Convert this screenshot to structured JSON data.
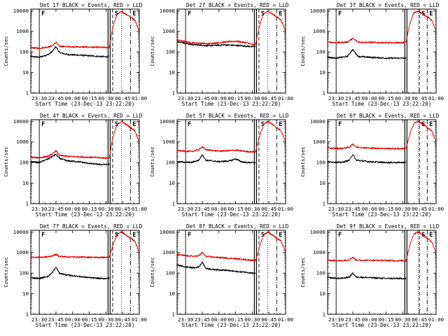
{
  "figure": {
    "x_tick_labels": [
      "23:30",
      "23:45",
      "00:00",
      "00:15",
      "00:30",
      "00:45",
      "01:00"
    ],
    "y_tick_labels": [
      "1",
      "10",
      "100",
      "1000",
      "10000"
    ],
    "x_axis_label": "Start Time (23-Dec-13 23:22:20)",
    "y_axis_label": "Counts/sec",
    "colors": {
      "events": "#000000",
      "lld": "#e00000",
      "background": "#ffffff"
    }
  },
  "chart_data": [
    {
      "type": "line",
      "title": "Det 1f BLACK = Events, RED = LLD",
      "xlabel": "Start Time (23-Dec-13 23:22:20)",
      "ylabel": "Counts/sec",
      "ylog": true,
      "ylim": [
        1,
        12000
      ],
      "xlim": [
        "23:22:20",
        "01:00:00"
      ],
      "x_ticks": [
        "23:30",
        "23:45",
        "00:00",
        "00:15",
        "00:30",
        "00:45",
        "01:00"
      ],
      "series": [
        {
          "name": "Events",
          "color": "#000000",
          "x": [
            "23:22",
            "23:30",
            "23:38",
            "23:42",
            "23:45",
            "23:48",
            "23:55",
            "00:05",
            "00:15",
            "00:25",
            "00:30",
            "00:33"
          ],
          "y": [
            60,
            55,
            75,
            110,
            180,
            95,
            75,
            70,
            65,
            60,
            58,
            60
          ]
        },
        {
          "name": "LLD",
          "color": "#e00000",
          "x": [
            "23:22",
            "23:30",
            "23:38",
            "23:42",
            "23:45",
            "23:48",
            "23:55",
            "00:05",
            "00:15",
            "00:25",
            "00:30",
            "00:33",
            "00:36",
            "00:40",
            "00:44",
            "00:50",
            "00:56",
            "01:00"
          ],
          "y": [
            160,
            150,
            175,
            200,
            300,
            190,
            180,
            175,
            170,
            165,
            165,
            170,
            1500,
            7000,
            9000,
            6000,
            3500,
            1000
          ]
        }
      ],
      "markers": [
        {
          "label": "F",
          "time": "23:30"
        },
        {
          "label": "S",
          "time": "00:36"
        },
        {
          "label": "E",
          "time": "00:52"
        }
      ]
    },
    {
      "type": "line",
      "title": "Det 2f BLACK = Events, RED = LLD",
      "xlabel": "Start Time (23-Dec-13 23:22:20)",
      "ylabel": "Counts/sec",
      "ylog": true,
      "ylim": [
        1,
        12000
      ],
      "xlim": [
        "23:22:20",
        "01:00:00"
      ],
      "x_ticks": [
        "23:30",
        "23:45",
        "00:00",
        "00:15",
        "00:30",
        "00:45",
        "01:00"
      ],
      "series": [
        {
          "name": "Events",
          "color": "#000000",
          "x": [
            "23:22",
            "23:35",
            "23:50",
            "00:05",
            "00:20",
            "00:30",
            "00:33"
          ],
          "y": [
            330,
            230,
            200,
            220,
            200,
            180,
            190
          ]
        },
        {
          "name": "LLD",
          "color": "#e00000",
          "x": [
            "23:22",
            "23:35",
            "23:50",
            "00:05",
            "00:15",
            "00:25",
            "00:30",
            "00:33",
            "00:36",
            "00:40",
            "00:44",
            "00:50",
            "00:56",
            "01:00"
          ],
          "y": [
            380,
            280,
            250,
            300,
            330,
            280,
            230,
            240,
            1500,
            7000,
            9500,
            6000,
            3500,
            1000
          ]
        }
      ],
      "markers": [
        {
          "label": "F",
          "time": "23:30"
        },
        {
          "label": "S",
          "time": "00:36"
        },
        {
          "label": "E",
          "time": "00:52"
        }
      ]
    },
    {
      "type": "line",
      "title": "Det 3f BLACK = Events, RED = LLD",
      "xlabel": "Start Time (23-Dec-13 23:22:20)",
      "ylabel": "Counts/sec",
      "ylog": true,
      "ylim": [
        1,
        12000
      ],
      "xlim": [
        "23:22:20",
        "01:00:00"
      ],
      "x_ticks": [
        "23:30",
        "23:45",
        "00:00",
        "00:15",
        "00:30",
        "00:45",
        "01:00"
      ],
      "series": [
        {
          "name": "Events",
          "color": "#000000",
          "x": [
            "23:22",
            "23:30",
            "23:40",
            "23:45",
            "23:50",
            "00:00",
            "00:15",
            "00:25",
            "00:33"
          ],
          "y": [
            55,
            50,
            60,
            130,
            60,
            55,
            50,
            50,
            50
          ]
        },
        {
          "name": "LLD",
          "color": "#e00000",
          "x": [
            "23:22",
            "23:30",
            "23:40",
            "23:45",
            "23:50",
            "00:00",
            "00:15",
            "00:25",
            "00:33",
            "00:36",
            "00:40",
            "00:44",
            "00:50",
            "00:56",
            "01:00"
          ],
          "y": [
            300,
            280,
            300,
            450,
            300,
            290,
            280,
            280,
            290,
            2000,
            8000,
            9500,
            6000,
            3500,
            1000
          ]
        }
      ],
      "markers": [
        {
          "label": "F",
          "time": "23:30"
        },
        {
          "label": "S",
          "time": "00:45"
        },
        {
          "label": "E",
          "time": "00:52"
        }
      ]
    },
    {
      "type": "line",
      "title": "Det 4f BLACK = Events, RED = LLD",
      "xlabel": "Start Time (23-Dec-13 23:22:20)",
      "ylabel": "Counts/sec",
      "ylog": true,
      "ylim": [
        1,
        12000
      ],
      "xlim": [
        "23:22:20",
        "01:00:00"
      ],
      "x_ticks": [
        "23:30",
        "23:45",
        "00:00",
        "00:15",
        "00:30",
        "00:45",
        "01:00"
      ],
      "series": [
        {
          "name": "Events",
          "color": "#000000",
          "x": [
            "23:22",
            "23:30",
            "23:38",
            "23:42",
            "23:45",
            "23:48",
            "23:55",
            "00:05",
            "00:15",
            "00:25",
            "00:30",
            "00:33"
          ],
          "y": [
            110,
            100,
            150,
            200,
            250,
            160,
            120,
            110,
            90,
            80,
            80,
            85
          ]
        },
        {
          "name": "LLD",
          "color": "#e00000",
          "x": [
            "23:22",
            "23:30",
            "23:38",
            "23:42",
            "23:45",
            "23:48",
            "23:55",
            "00:05",
            "00:15",
            "00:25",
            "00:30",
            "00:33",
            "00:36",
            "00:40",
            "00:44",
            "00:50",
            "00:56",
            "01:00"
          ],
          "y": [
            180,
            170,
            200,
            260,
            380,
            220,
            200,
            190,
            180,
            170,
            165,
            170,
            1500,
            7000,
            10000,
            6000,
            3500,
            1000
          ]
        }
      ],
      "markers": [
        {
          "label": "F",
          "time": "23:30"
        },
        {
          "label": "S",
          "time": "00:36"
        },
        {
          "label": "E",
          "time": "00:52"
        }
      ]
    },
    {
      "type": "line",
      "title": "Det 5f BLACK = Events, RED = LLD",
      "xlabel": "Start Time (23-Dec-13 23:22:20)",
      "ylabel": "Counts/sec",
      "ylog": true,
      "ylim": [
        1,
        12000
      ],
      "xlim": [
        "23:22:20",
        "01:00:00"
      ],
      "x_ticks": [
        "23:30",
        "23:45",
        "00:00",
        "00:15",
        "00:30",
        "00:45",
        "01:00"
      ],
      "series": [
        {
          "name": "Events",
          "color": "#000000",
          "x": [
            "23:22",
            "23:35",
            "23:42",
            "23:45",
            "23:48",
            "00:00",
            "00:10",
            "00:15",
            "00:20",
            "00:25",
            "00:30",
            "00:33"
          ],
          "y": [
            110,
            100,
            130,
            250,
            130,
            110,
            120,
            150,
            110,
            100,
            100,
            95
          ]
        },
        {
          "name": "LLD",
          "color": "#e00000",
          "x": [
            "23:22",
            "23:35",
            "23:42",
            "23:45",
            "23:48",
            "00:00",
            "00:10",
            "00:15",
            "00:20",
            "00:25",
            "00:30",
            "00:33",
            "00:36",
            "00:40",
            "00:44",
            "00:50",
            "00:56",
            "01:00"
          ],
          "y": [
            380,
            340,
            420,
            600,
            420,
            360,
            380,
            400,
            370,
            340,
            330,
            340,
            1500,
            7000,
            10000,
            6000,
            3500,
            1000
          ]
        }
      ],
      "markers": [
        {
          "label": "F",
          "time": "23:30"
        },
        {
          "label": "S",
          "time": "00:36"
        },
        {
          "label": "E",
          "time": "00:52"
        }
      ]
    },
    {
      "type": "line",
      "title": "Det 6f BLACK = Events, RED = LLD",
      "xlabel": "Start Time (23-Dec-13 23:22:20)",
      "ylabel": "Counts/sec",
      "ylog": true,
      "ylim": [
        1,
        12000
      ],
      "xlim": [
        "23:22:20",
        "01:00:00"
      ],
      "x_ticks": [
        "23:30",
        "23:45",
        "00:00",
        "00:15",
        "00:30",
        "00:45",
        "01:00"
      ],
      "series": [
        {
          "name": "Events",
          "color": "#000000",
          "x": [
            "23:22",
            "23:35",
            "23:42",
            "23:45",
            "23:48",
            "00:00",
            "00:15",
            "00:25",
            "00:33"
          ],
          "y": [
            110,
            100,
            130,
            250,
            130,
            110,
            100,
            100,
            100
          ]
        },
        {
          "name": "LLD",
          "color": "#e00000",
          "x": [
            "23:22",
            "23:35",
            "23:42",
            "23:45",
            "23:48",
            "00:00",
            "00:15",
            "00:25",
            "00:33",
            "00:36",
            "00:40",
            "00:44",
            "00:50",
            "00:56",
            "01:00"
          ],
          "y": [
            500,
            480,
            550,
            800,
            560,
            500,
            480,
            470,
            480,
            2000,
            8000,
            10000,
            6000,
            3500,
            1000
          ]
        }
      ],
      "markers": [
        {
          "label": "F",
          "time": "23:30"
        },
        {
          "label": "S",
          "time": "00:45"
        },
        {
          "label": "E",
          "time": "00:52"
        }
      ]
    },
    {
      "type": "line",
      "title": "Det 7f BLACK = Events, RED = LLD",
      "xlabel": "Start Time (23-Dec-13 23:22:20)",
      "ylabel": "Counts/sec",
      "ylog": true,
      "ylim": [
        1,
        12000
      ],
      "xlim": [
        "23:22:20",
        "01:00:00"
      ],
      "x_ticks": [
        "23:30",
        "23:45",
        "00:00",
        "00:15",
        "00:30",
        "00:45",
        "01:00"
      ],
      "series": [
        {
          "name": "Events",
          "color": "#000000",
          "x": [
            "23:22",
            "23:30",
            "23:38",
            "23:42",
            "23:45",
            "23:48",
            "23:55",
            "00:05",
            "00:15",
            "00:25",
            "00:30",
            "00:33"
          ],
          "y": [
            60,
            55,
            70,
            110,
            200,
            100,
            80,
            70,
            60,
            55,
            55,
            55
          ]
        },
        {
          "name": "LLD",
          "color": "#e00000",
          "x": [
            "23:22",
            "23:30",
            "23:38",
            "23:42",
            "23:45",
            "23:48",
            "23:55",
            "00:05",
            "00:15",
            "00:25",
            "00:30",
            "00:33",
            "00:36",
            "00:40",
            "00:44",
            "00:50",
            "00:56",
            "01:00"
          ],
          "y": [
            600,
            580,
            620,
            700,
            800,
            650,
            620,
            600,
            590,
            580,
            580,
            600,
            2000,
            8000,
            10000,
            6000,
            3500,
            1000
          ]
        }
      ],
      "markers": [
        {
          "label": "F",
          "time": "23:30"
        },
        {
          "label": "S",
          "time": "00:36"
        },
        {
          "label": "E",
          "time": "00:52"
        }
      ]
    },
    {
      "type": "line",
      "title": "Det 8f BLACK = Events, RED = LLD",
      "xlabel": "Start Time (23-Dec-13 23:22:20)",
      "ylabel": "Counts/sec",
      "ylog": true,
      "ylim": [
        1,
        12000
      ],
      "xlim": [
        "23:22:20",
        "01:00:00"
      ],
      "x_ticks": [
        "23:30",
        "23:45",
        "00:00",
        "00:15",
        "00:30",
        "00:45",
        "01:00"
      ],
      "series": [
        {
          "name": "Events",
          "color": "#000000",
          "x": [
            "23:22",
            "23:30",
            "23:38",
            "23:42",
            "23:45",
            "23:48",
            "23:55",
            "00:05",
            "00:15",
            "00:25",
            "00:30",
            "00:33"
          ],
          "y": [
            250,
            200,
            180,
            200,
            350,
            170,
            150,
            140,
            120,
            110,
            100,
            95
          ]
        },
        {
          "name": "LLD",
          "color": "#e00000",
          "x": [
            "23:22",
            "23:30",
            "23:38",
            "23:42",
            "23:45",
            "23:48",
            "23:55",
            "00:05",
            "00:15",
            "00:25",
            "00:30",
            "00:33",
            "00:36",
            "00:40",
            "00:44",
            "00:50",
            "00:56",
            "01:00"
          ],
          "y": [
            800,
            700,
            650,
            700,
            1000,
            650,
            600,
            550,
            500,
            450,
            420,
            400,
            1500,
            7000,
            10000,
            6000,
            3500,
            1000
          ]
        }
      ],
      "markers": [
        {
          "label": "F",
          "time": "23:30"
        },
        {
          "label": "S",
          "time": "00:36"
        },
        {
          "label": "E",
          "time": "00:52"
        }
      ]
    },
    {
      "type": "line",
      "title": "Det 9f BLACK = Events, RED = LLD",
      "xlabel": "Start Time (23-Dec-13 23:22:20)",
      "ylabel": "Counts/sec",
      "ylog": true,
      "ylim": [
        1,
        12000
      ],
      "xlim": [
        "23:22:20",
        "01:00:00"
      ],
      "x_ticks": [
        "23:30",
        "23:45",
        "00:00",
        "00:15",
        "00:30",
        "00:45",
        "01:00"
      ],
      "series": [
        {
          "name": "Events",
          "color": "#000000",
          "x": [
            "23:22",
            "23:35",
            "23:42",
            "23:45",
            "23:48",
            "00:00",
            "00:15",
            "00:25",
            "00:33"
          ],
          "y": [
            60,
            55,
            65,
            100,
            65,
            60,
            55,
            55,
            55
          ]
        },
        {
          "name": "LLD",
          "color": "#e00000",
          "x": [
            "23:22",
            "23:35",
            "23:42",
            "23:45",
            "23:48",
            "00:00",
            "00:15",
            "00:25",
            "00:33",
            "00:36",
            "00:40",
            "00:44",
            "00:50",
            "00:56",
            "01:00"
          ],
          "y": [
            420,
            400,
            450,
            600,
            430,
            420,
            410,
            400,
            400,
            2000,
            8000,
            10000,
            6000,
            3500,
            1000
          ]
        }
      ],
      "markers": [
        {
          "label": "F",
          "time": "23:30"
        },
        {
          "label": "S",
          "time": "00:45"
        },
        {
          "label": "E",
          "time": "00:52"
        }
      ]
    }
  ]
}
